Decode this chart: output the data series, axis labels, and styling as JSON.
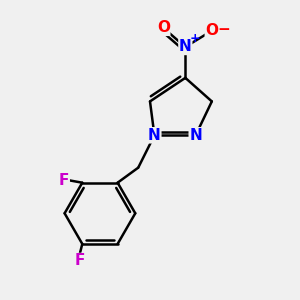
{
  "background_color": "#f0f0f0",
  "bond_color": "#000000",
  "N_color": "#0000ff",
  "O_color": "#ff0000",
  "F_color": "#cc00cc",
  "line_width": 1.8,
  "figsize": [
    3.0,
    3.0
  ],
  "dpi": 100,
  "xlim": [
    0,
    10
  ],
  "ylim": [
    0,
    10
  ]
}
